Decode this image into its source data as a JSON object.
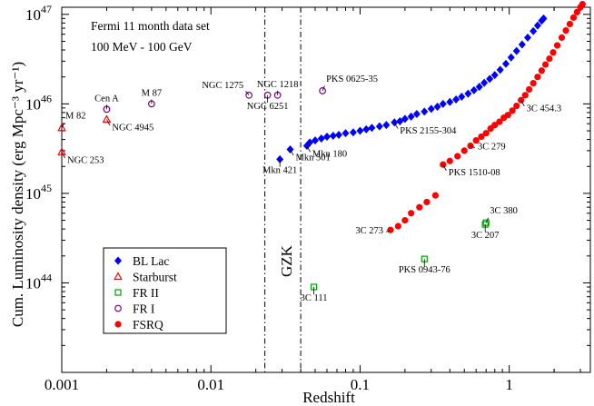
{
  "chart_data": {
    "type": "scatter",
    "xlabel": "Redshift",
    "ylabel": "Cum. Luminosity density (erg Mpc⁻³ yr⁻¹)",
    "xscale": "log",
    "yscale": "log",
    "xlim": [
      0.001,
      3.5
    ],
    "ylim": [
      1e+43,
      1.2e+47
    ],
    "legend_position": "bottom-left",
    "info_text": [
      "Fermi 11 month data set",
      "100 MeV - 100 GeV"
    ],
    "x_tick_labels": [
      "0.001",
      "0.01",
      "0.1",
      "1"
    ],
    "y_tick_labels": [
      {
        "mant": "10",
        "exp": "44"
      },
      {
        "mant": "10",
        "exp": "45"
      },
      {
        "mant": "10",
        "exp": "46"
      },
      {
        "mant": "10",
        "exp": "47"
      }
    ],
    "vlines": [
      0.023,
      0.04
    ],
    "vline_label": "GZK",
    "series": [
      {
        "name": "BL Lac",
        "marker": "diamond",
        "color": "#0000ff",
        "points": [
          [
            0.029,
            2.4e+45
          ],
          [
            0.034,
            3.1e+45
          ],
          [
            0.044,
            3.4e+45
          ],
          [
            0.046,
            3.7e+45
          ],
          [
            0.05,
            3.9e+45
          ],
          [
            0.055,
            4.1e+45
          ],
          [
            0.06,
            4.3e+45
          ],
          [
            0.066,
            4.4e+45
          ],
          [
            0.072,
            4.5e+45
          ],
          [
            0.08,
            4.7e+45
          ],
          [
            0.09,
            4.8e+45
          ],
          [
            0.1,
            5e+45
          ],
          [
            0.11,
            5.2e+45
          ],
          [
            0.12,
            5.4e+45
          ],
          [
            0.135,
            5.6e+45
          ],
          [
            0.15,
            5.8e+45
          ],
          [
            0.17,
            6.2e+45
          ],
          [
            0.185,
            6.4e+45
          ],
          [
            0.2,
            6.8e+45
          ],
          [
            0.22,
            7.2e+45
          ],
          [
            0.24,
            7.7e+45
          ],
          [
            0.27,
            8.2e+45
          ],
          [
            0.3,
            8.8e+45
          ],
          [
            0.33,
            9.3e+45
          ],
          [
            0.36,
            1e+46
          ],
          [
            0.4,
            1.05e+46
          ],
          [
            0.44,
            1.12e+46
          ],
          [
            0.48,
            1.2e+46
          ],
          [
            0.53,
            1.3e+46
          ],
          [
            0.58,
            1.42e+46
          ],
          [
            0.63,
            1.55e+46
          ],
          [
            0.68,
            1.72e+46
          ],
          [
            0.74,
            1.9e+46
          ],
          [
            0.8,
            2.1e+46
          ],
          [
            0.87,
            2.4e+46
          ],
          [
            0.95,
            2.8e+46
          ],
          [
            1.03,
            3.3e+46
          ],
          [
            1.12,
            3.9e+46
          ],
          [
            1.22,
            4.6e+46
          ],
          [
            1.33,
            5.5e+46
          ],
          [
            1.45,
            6.5e+46
          ],
          [
            1.55,
            7.5e+46
          ],
          [
            1.65,
            8.5e+46
          ],
          [
            1.7,
            9e+46
          ]
        ]
      },
      {
        "name": "Starburst",
        "marker": "triangle",
        "color": "#ff0000",
        "points": [
          [
            0.001,
            2.9e+45
          ],
          [
            0.001,
            5.4e+45
          ],
          [
            0.002,
            6.7e+45
          ]
        ]
      },
      {
        "name": "FR II",
        "marker": "square",
        "color": "#00a000",
        "points": [
          [
            0.049,
            9e+43
          ],
          [
            0.27,
            1.85e+44
          ],
          [
            0.69,
            4.5e+44
          ],
          [
            0.7,
            4.7e+44
          ]
        ]
      },
      {
        "name": "FR I",
        "marker": "circle",
        "color": "#800080",
        "points": [
          [
            0.002,
            8.7e+45
          ],
          [
            0.004,
            1e+46
          ],
          [
            0.018,
            1.25e+46
          ],
          [
            0.024,
            1.25e+46
          ],
          [
            0.028,
            1.25e+46
          ],
          [
            0.056,
            1.4e+46
          ]
        ]
      },
      {
        "name": "FSRQ",
        "marker": "dot",
        "color": "#ff0000",
        "points": [
          [
            0.16,
            3.9e+44
          ],
          [
            0.18,
            4.3e+44
          ],
          [
            0.2,
            5e+44
          ],
          [
            0.22,
            6e+44
          ],
          [
            0.25,
            7e+44
          ],
          [
            0.28,
            8e+44
          ],
          [
            0.32,
            9.5e+44
          ],
          [
            0.36,
            2.1e+45
          ],
          [
            0.4,
            2.3e+45
          ],
          [
            0.45,
            2.6e+45
          ],
          [
            0.5,
            3e+45
          ],
          [
            0.55,
            3.4e+45
          ],
          [
            0.6,
            3.9e+45
          ],
          [
            0.65,
            4.3e+45
          ],
          [
            0.7,
            4.7e+45
          ],
          [
            0.75,
            5.3e+45
          ],
          [
            0.8,
            5.8e+45
          ],
          [
            0.86,
            6.3e+45
          ],
          [
            0.92,
            7e+45
          ],
          [
            0.98,
            7.5e+45
          ],
          [
            1.05,
            8.4e+45
          ],
          [
            1.12,
            9.5e+45
          ],
          [
            1.2,
            1.1e+46
          ],
          [
            1.28,
            1.25e+46
          ],
          [
            1.36,
            1.45e+46
          ],
          [
            1.45,
            1.7e+46
          ],
          [
            1.55,
            2e+46
          ],
          [
            1.65,
            2.35e+46
          ],
          [
            1.75,
            2.75e+46
          ],
          [
            1.86,
            3.2e+46
          ],
          [
            1.97,
            3.75e+46
          ],
          [
            2.1,
            4.5e+46
          ],
          [
            2.25,
            5.5e+46
          ],
          [
            2.4,
            6.6e+46
          ],
          [
            2.55,
            7.8e+46
          ],
          [
            2.7,
            9.2e+46
          ],
          [
            2.85,
            1.06e+47
          ],
          [
            3.0,
            1.2e+47
          ],
          [
            3.1,
            1.3e+47
          ]
        ]
      }
    ],
    "annotations": [
      {
        "text": "M 82",
        "x": 0.001,
        "y": 5.4e+45,
        "pos": "above-right"
      },
      {
        "text": "NGC 253",
        "x": 0.001,
        "y": 2.9e+45,
        "pos": "below-right"
      },
      {
        "text": "Cen A",
        "x": 0.002,
        "y": 8.7e+45,
        "pos": "above"
      },
      {
        "text": "NGC 4945",
        "x": 0.002,
        "y": 6.7e+45,
        "pos": "below-right"
      },
      {
        "text": "M 87",
        "x": 0.004,
        "y": 1e+46,
        "pos": "above"
      },
      {
        "text": "NGC 1275",
        "x": 0.018,
        "y": 1.25e+46,
        "pos": "above-left"
      },
      {
        "text": "NGC 1218",
        "x": 0.028,
        "y": 1.25e+46,
        "pos": "above"
      },
      {
        "text": "NGC 6251",
        "x": 0.024,
        "y": 1.25e+46,
        "pos": "below"
      },
      {
        "text": "PKS 0625-35",
        "x": 0.056,
        "y": 1.4e+46,
        "pos": "above-right"
      },
      {
        "text": "PKS 2155-304",
        "x": 0.17,
        "y": 6.2e+45,
        "pos": "below-right"
      },
      {
        "text": "Mkn 180",
        "x": 0.044,
        "y": 3.4e+45,
        "pos": "below-right"
      },
      {
        "text": "Mkn 501",
        "x": 0.034,
        "y": 3.1e+45,
        "pos": "below-right"
      },
      {
        "text": "Mkn 421",
        "x": 0.029,
        "y": 2.4e+45,
        "pos": "below"
      },
      {
        "text": "3C 454.3",
        "x": 1.2,
        "y": 1.1e+46,
        "pos": "below-right"
      },
      {
        "text": "3C 279",
        "x": 0.55,
        "y": 3.4e+45,
        "pos": "right"
      },
      {
        "text": "PKS 1510-08",
        "x": 0.36,
        "y": 2.1e+45,
        "pos": "below-right"
      },
      {
        "text": "3C 273",
        "x": 0.16,
        "y": 3.9e+44,
        "pos": "left"
      },
      {
        "text": "3C 380",
        "x": 0.7,
        "y": 4.7e+44,
        "pos": "above-right"
      },
      {
        "text": "3C 207",
        "x": 0.69,
        "y": 4.5e+44,
        "pos": "below"
      },
      {
        "text": "PKS 0943-76",
        "x": 0.27,
        "y": 1.85e+44,
        "pos": "below"
      },
      {
        "text": "3C 111",
        "x": 0.049,
        "y": 9e+43,
        "pos": "below"
      }
    ]
  }
}
